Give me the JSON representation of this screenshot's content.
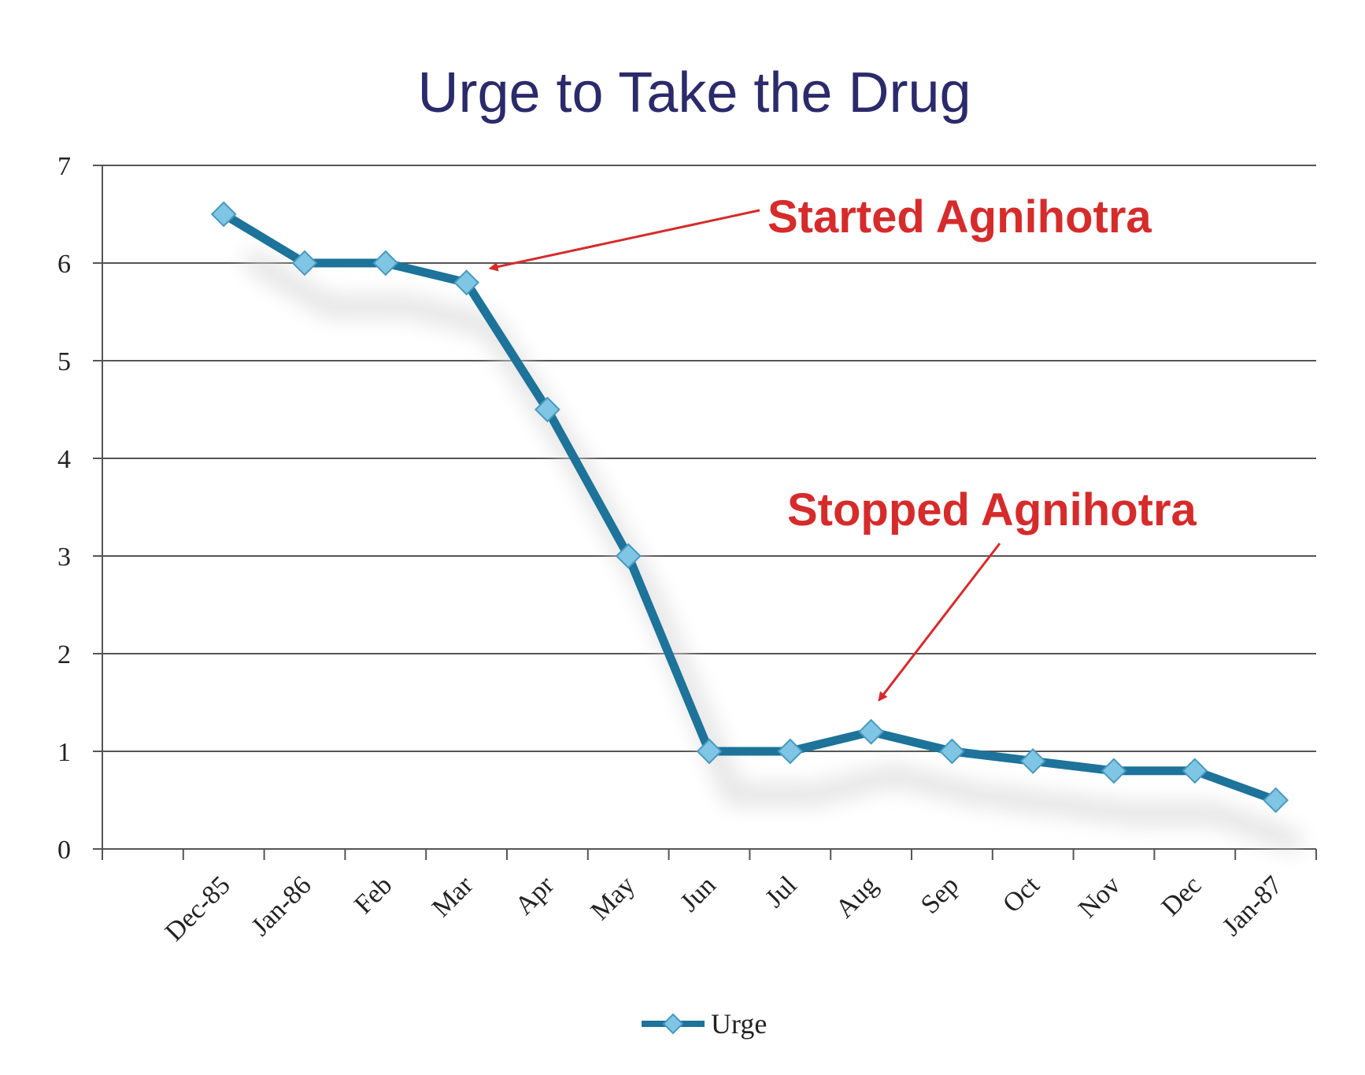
{
  "chart_data": {
    "type": "line",
    "title": "Urge to Take the Drug",
    "xlabel": "",
    "ylabel": "",
    "categories": [
      "Dec-85",
      "Jan-86",
      "Feb",
      "Mar",
      "Apr",
      "May",
      "Jun",
      "Jul",
      "Aug",
      "Sep",
      "Oct",
      "Nov",
      "Dec",
      "Jan-87"
    ],
    "series": [
      {
        "name": "Urge",
        "values": [
          6.5,
          6.0,
          6.0,
          5.8,
          4.5,
          3.0,
          1.0,
          1.0,
          1.2,
          1.0,
          0.9,
          0.8,
          0.8,
          0.5
        ],
        "color": "#1d7399",
        "marker_color": "#7fc6e4",
        "marker": "diamond"
      }
    ],
    "ylim": [
      0,
      7
    ],
    "yticks": [
      0,
      1,
      2,
      3,
      4,
      5,
      6,
      7
    ],
    "grid": true,
    "legend": "bottom",
    "annotations": [
      {
        "text": "Started Agnihotra",
        "target_category": "Mar",
        "target_value": 5.8,
        "color": "#d62b2b"
      },
      {
        "text": "Stopped Agnihotra",
        "target_category": "Aug",
        "target_value": 1.2,
        "color": "#d62b2b"
      }
    ],
    "colors": {
      "title": "#2b2a6b",
      "grid": "#555555",
      "annotation": "#d62b2b"
    }
  }
}
